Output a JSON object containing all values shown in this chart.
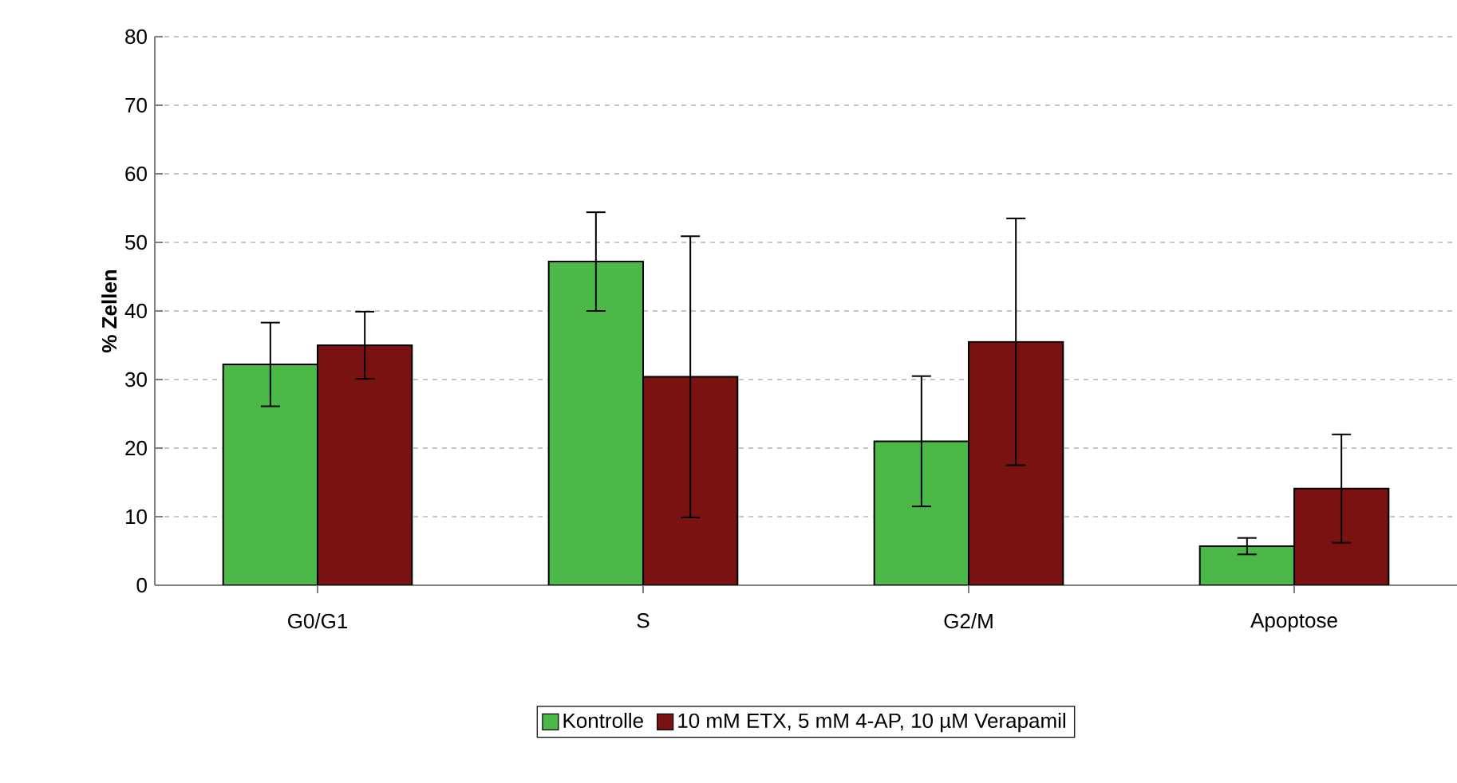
{
  "chart_data": {
    "type": "bar",
    "ylabel": "% Zellen",
    "categories": [
      "G0/G1",
      "S",
      "G2/M",
      "Apoptose"
    ],
    "series": [
      {
        "name": "Kontrolle",
        "color": "#4cb848",
        "values": [
          32.2,
          47.2,
          21.0,
          5.7
        ],
        "errors": [
          6.1,
          7.2,
          9.5,
          1.2
        ]
      },
      {
        "name": "10 mM ETX, 5 mM 4-AP, 10 µM Verapamil",
        "color": "#7a1212",
        "values": [
          35.0,
          30.4,
          35.5,
          14.1
        ],
        "errors": [
          4.9,
          20.5,
          18.0,
          7.9
        ]
      }
    ],
    "ylim": [
      0,
      80
    ],
    "yticks": [
      0,
      10,
      20,
      30,
      40,
      50,
      60,
      70,
      80
    ],
    "grid": "y",
    "legend": "bottom"
  }
}
